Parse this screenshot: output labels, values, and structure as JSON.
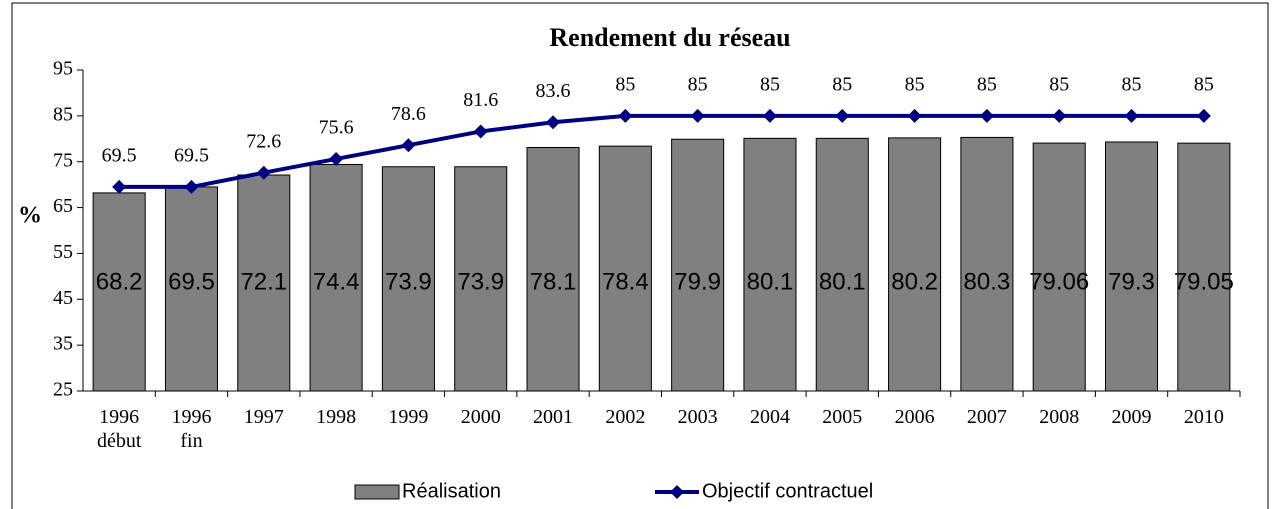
{
  "chart_data": {
    "type": "bar-line",
    "title": "Rendement du réseau",
    "ylabel": "%",
    "categories": [
      "1996 début",
      "1996 fin",
      "1997",
      "1998",
      "1999",
      "2000",
      "2001",
      "2002",
      "2003",
      "2004",
      "2005",
      "2006",
      "2007",
      "2008",
      "2009",
      "2010"
    ],
    "series": [
      {
        "name": "Réalisation",
        "type": "bar",
        "color": "#808080",
        "values": [
          68.2,
          69.5,
          72.1,
          74.4,
          73.9,
          73.9,
          78.1,
          78.4,
          79.9,
          80.1,
          80.1,
          80.2,
          80.3,
          79.06,
          79.3,
          79.05
        ]
      },
      {
        "name": "Objectif contractuel",
        "type": "line",
        "color": "#000080",
        "values": [
          69.5,
          69.5,
          72.6,
          75.6,
          78.6,
          81.6,
          83.6,
          85,
          85,
          85,
          85,
          85,
          85,
          85,
          85,
          85
        ]
      }
    ],
    "ylim": [
      25,
      95
    ],
    "yticks": [
      25,
      35,
      45,
      55,
      65,
      75,
      85,
      95
    ],
    "grid": false,
    "legend": "bottom"
  }
}
